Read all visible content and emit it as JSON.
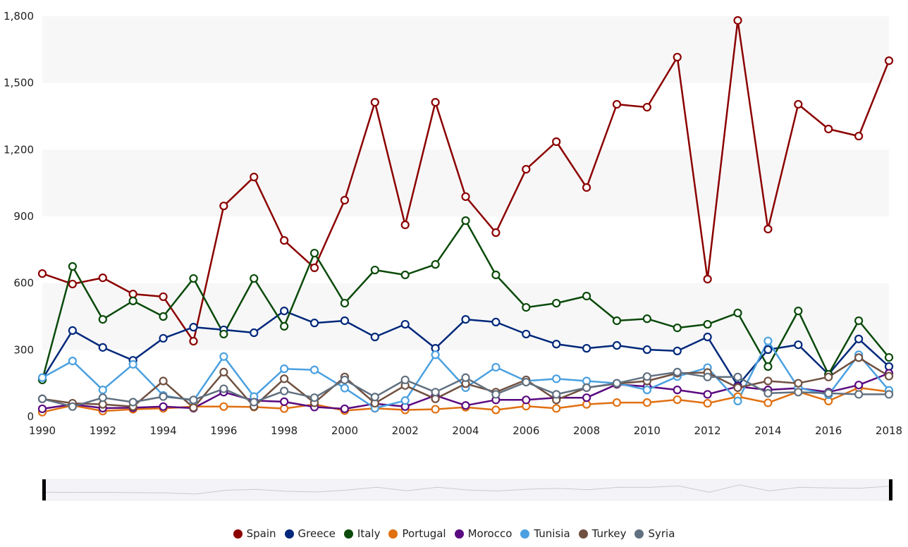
{
  "chart_data": {
    "type": "line",
    "title": "",
    "xlabel": "",
    "ylabel": "",
    "x": [
      1990,
      1991,
      1992,
      1993,
      1994,
      1995,
      1996,
      1997,
      1998,
      1999,
      2000,
      2001,
      2002,
      2003,
      2004,
      2005,
      2006,
      2007,
      2008,
      2009,
      2010,
      2011,
      2012,
      2013,
      2014,
      2015,
      2016,
      2017,
      2018
    ],
    "x_ticks": [
      "1990",
      "1992",
      "1994",
      "1996",
      "1998",
      "2000",
      "2002",
      "2004",
      "2006",
      "2008",
      "2010",
      "2012",
      "2014",
      "2016",
      "2018"
    ],
    "y_ticks": [
      "0",
      "300",
      "600",
      "900",
      "1,200",
      "1,500",
      "1,800"
    ],
    "y_tick_values": [
      0,
      300,
      600,
      900,
      1200,
      1500,
      1800
    ],
    "ylim": [
      0,
      1800
    ],
    "xlim": [
      1990,
      2018
    ],
    "grid": "alternating horizontal bands",
    "legend_position": "bottom-center",
    "series": [
      {
        "name": "Spain",
        "color": "#8b0000",
        "values": [
          643,
          596,
          624,
          551,
          539,
          339,
          947,
          1077,
          792,
          669,
          973,
          1413,
          862,
          1413,
          989,
          827,
          1112,
          1236,
          1030,
          1404,
          1391,
          1616,
          618,
          1781,
          843,
          1404,
          1293,
          1261,
          1600
        ]
      },
      {
        "name": "Greece",
        "color": "#00287a",
        "values": [
          168,
          387,
          311,
          253,
          352,
          402,
          390,
          377,
          475,
          421,
          431,
          358,
          415,
          307,
          437,
          425,
          371,
          326,
          307,
          320,
          301,
          295,
          358,
          139,
          301,
          323,
          190,
          349,
          225
        ]
      },
      {
        "name": "Italy",
        "color": "#0a4a0a",
        "values": [
          165,
          675,
          437,
          520,
          450,
          621,
          371,
          621,
          406,
          735,
          510,
          659,
          637,
          684,
          881,
          637,
          491,
          510,
          542,
          431,
          440,
          399,
          415,
          466,
          225,
          475,
          190,
          431,
          266
        ]
      },
      {
        "name": "Portugal",
        "color": "#e07010",
        "values": [
          20,
          50,
          25,
          33,
          37,
          45,
          45,
          43,
          36,
          55,
          27,
          37,
          30,
          33,
          42,
          30,
          47,
          37,
          55,
          63,
          63,
          76,
          60,
          90,
          62,
          112,
          70,
          130,
          112
        ]
      },
      {
        "name": "Morocco",
        "color": "#5a0a80",
        "values": [
          35,
          55,
          38,
          40,
          45,
          38,
          110,
          72,
          67,
          43,
          35,
          58,
          45,
          95,
          50,
          75,
          75,
          85,
          85,
          145,
          135,
          120,
          100,
          135,
          120,
          128,
          110,
          142,
          195
        ]
      },
      {
        "name": "Tunisia",
        "color": "#4aa0e0",
        "values": [
          175,
          250,
          120,
          235,
          95,
          72,
          270,
          90,
          215,
          210,
          128,
          38,
          72,
          278,
          130,
          222,
          160,
          170,
          160,
          150,
          120,
          180,
          220,
          70,
          340,
          130,
          98,
          278,
          118
        ]
      },
      {
        "name": "Turkey",
        "color": "#705040",
        "values": [
          80,
          60,
          55,
          45,
          160,
          40,
          200,
          45,
          170,
          62,
          178,
          60,
          140,
          80,
          148,
          110,
          165,
          75,
          130,
          148,
          160,
          195,
          198,
          130,
          160,
          150,
          178,
          265,
          182
        ]
      },
      {
        "name": "Syria",
        "color": "#607080",
        "values": [
          80,
          45,
          85,
          65,
          90,
          75,
          125,
          65,
          115,
          85,
          165,
          88,
          165,
          110,
          175,
          100,
          155,
          100,
          130,
          150,
          180,
          200,
          178,
          178,
          105,
          110,
          105,
          100,
          100
        ]
      }
    ],
    "navigator": {
      "series": "Spain",
      "range": [
        1990,
        2018
      ]
    }
  }
}
